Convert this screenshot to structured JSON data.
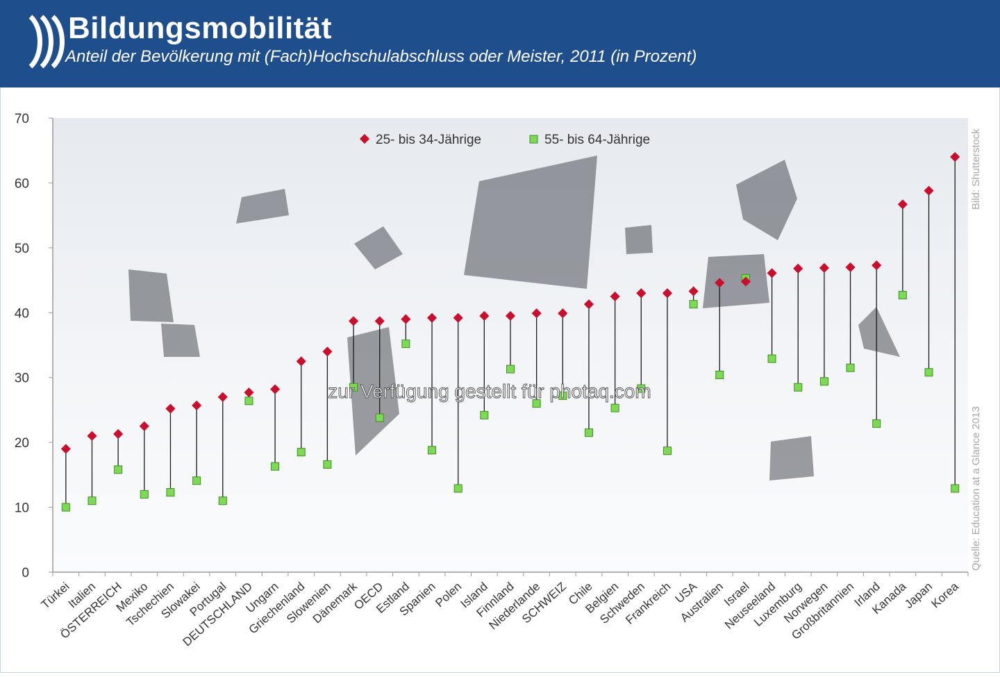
{
  "header": {
    "title": "Bildungsmobilität",
    "subtitle": "Anteil der Bevölkerung mit (Fach)Hochschulabschluss oder Meister, 2011 (in Prozent)"
  },
  "watermark": "zur Verfügung gestellt für photaq.com",
  "credits": {
    "image": "Bild: Shutterstock",
    "source": "Quelle: Education at a Glance 2013"
  },
  "colors": {
    "header_bg": "#1f4e8c",
    "series_25_34": "#c8102e",
    "series_55_64": "#7ed957",
    "series_55_64_stroke": "#3f8f1f"
  },
  "chart_data": {
    "type": "scatter",
    "title": "Bildungsmobilität",
    "subtitle": "Anteil der Bevölkerung mit (Fach)Hochschulabschluss oder Meister, 2011 (in Prozent)",
    "ylim": [
      0,
      70
    ],
    "yticks": [
      0,
      10,
      20,
      30,
      40,
      50,
      60,
      70
    ],
    "grid": false,
    "legend": "top-center",
    "categories": [
      "Türkei",
      "Italien",
      "ÖSTERREICH",
      "Mexiko",
      "Tschechien",
      "Slowakei",
      "Portugal",
      "DEUTSCHLAND",
      "Ungarn",
      "Griechenland",
      "Slowenien",
      "Dänemark",
      "OECD",
      "Estland",
      "Spanien",
      "Polen",
      "Island",
      "Finnland",
      "Niederlande",
      "SCHWEIZ",
      "Chile",
      "Belgien",
      "Schweden",
      "Frankreich",
      "USA",
      "Australien",
      "Israel",
      "Neuseeland",
      "Luxemburg",
      "Norwegen",
      "Großbritannien",
      "Irland",
      "Kanada",
      "Japan",
      "Korea"
    ],
    "series": [
      {
        "name": "25- bis 34-Jährige",
        "marker": "diamond",
        "values": [
          19,
          21,
          21.3,
          22.5,
          25.2,
          25.7,
          27,
          27.7,
          28.2,
          32.5,
          34,
          38.7,
          38.7,
          39,
          39.2,
          39.2,
          39.5,
          39.5,
          39.9,
          39.9,
          41.3,
          42.5,
          43,
          43,
          43.3,
          44.6,
          44.8,
          46.1,
          46.8,
          46.9,
          47,
          47.3,
          56.7,
          58.8,
          64
        ]
      },
      {
        "name": "55- bis 64-Jährige",
        "marker": "square",
        "values": [
          10,
          11,
          15.8,
          12,
          12.3,
          14.1,
          11,
          26.4,
          16.3,
          18.5,
          16.6,
          28.5,
          23.8,
          35.2,
          18.8,
          12.9,
          24.2,
          31.3,
          26,
          27.2,
          21.5,
          25.3,
          28.3,
          18.7,
          41.3,
          30.4,
          45.3,
          32.9,
          28.5,
          29.4,
          31.5,
          22.9,
          42.7,
          30.8,
          12.9
        ]
      }
    ]
  }
}
